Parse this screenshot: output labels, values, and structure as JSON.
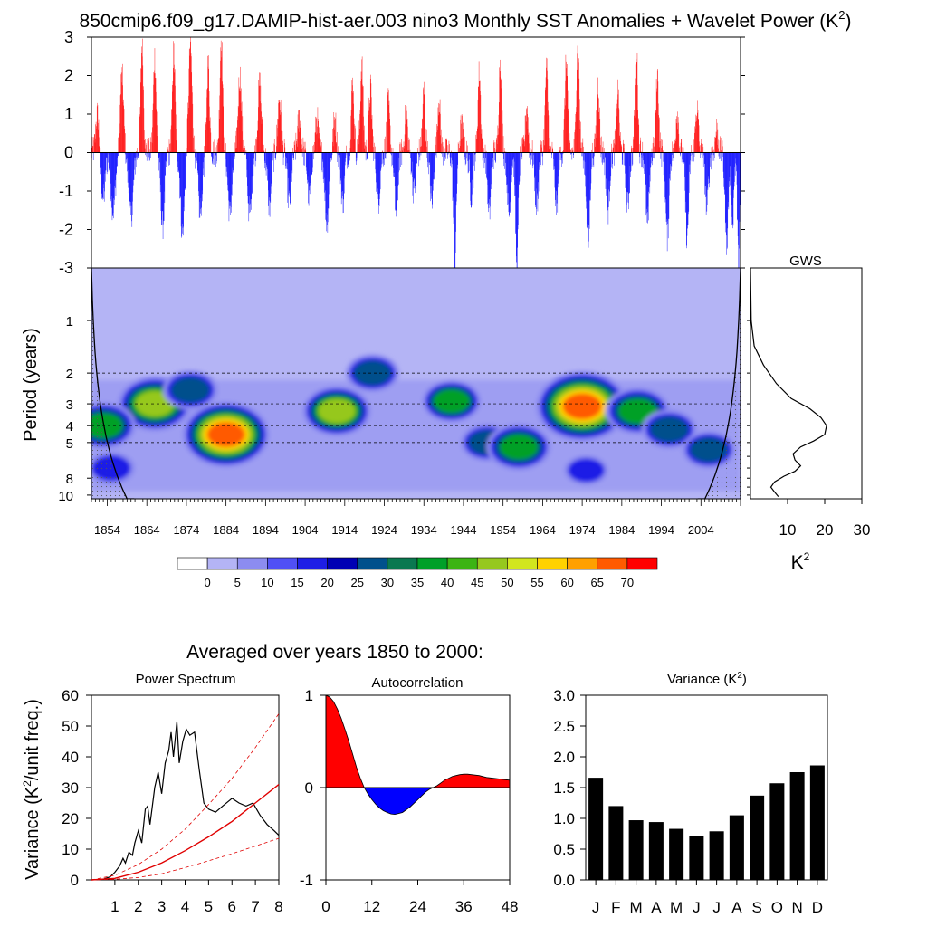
{
  "title": "850cmip6.f09_g17.DAMIP-hist-aer.003 nino3 Monthly SST Anomalies + Wavelet Power (K",
  "title_sup": "2",
  "title_tail": ")",
  "colors": {
    "warm": "#ff0000",
    "cool": "#0000ff",
    "black": "#000000",
    "base_fill": "#b4b4f5"
  },
  "anomaly_panel": {
    "type": "bar",
    "ylim": [
      -3,
      3
    ],
    "yticks": [
      "3",
      "2",
      "1",
      "0",
      "-1",
      "-2",
      "-3"
    ],
    "start_year": 1850,
    "end_year": 2014,
    "note_peaks": [
      {
        "x": 1882.8,
        "y": 3.0
      },
      {
        "x": 1941.8,
        "y": -3.0
      },
      {
        "x": 1957.5,
        "y": -3.0
      },
      {
        "x": 1972.9,
        "y": 3.0
      },
      {
        "x": 2013.5,
        "y": -2.9
      }
    ]
  },
  "wavelet_panel": {
    "type": "heatmap",
    "ylabel": "Period (years)",
    "ytick_labels": [
      "1",
      "2",
      "3",
      "4",
      "5",
      "8",
      "10"
    ],
    "ytick_values": [
      1,
      2,
      3,
      4,
      5,
      8,
      10
    ],
    "ylim": [
      0.5,
      10.5
    ],
    "xtick_labels": [
      "1854",
      "1864",
      "1874",
      "1884",
      "1894",
      "1904",
      "1914",
      "1924",
      "1934",
      "1944",
      "1954",
      "1964",
      "1974",
      "1984",
      "1994",
      "2004"
    ],
    "xlim": [
      1850,
      2014
    ],
    "hotspots": [
      {
        "x": 1866,
        "p": 3.0,
        "v": 52
      },
      {
        "x": 1884,
        "p": 4.5,
        "v": 66
      },
      {
        "x": 1853,
        "p": 4.0,
        "v": 42
      },
      {
        "x": 1875,
        "p": 2.5,
        "v": 32
      },
      {
        "x": 1912,
        "p": 3.3,
        "v": 46
      },
      {
        "x": 1921,
        "p": 2.0,
        "v": 30
      },
      {
        "x": 1941,
        "p": 2.9,
        "v": 36
      },
      {
        "x": 1950,
        "p": 5.0,
        "v": 30
      },
      {
        "x": 1958,
        "p": 5.3,
        "v": 42
      },
      {
        "x": 1974,
        "p": 3.1,
        "v": 72
      },
      {
        "x": 1988,
        "p": 3.3,
        "v": 42
      },
      {
        "x": 1996,
        "p": 4.2,
        "v": 32
      },
      {
        "x": 2006,
        "p": 5.5,
        "v": 30
      },
      {
        "x": 1855,
        "p": 7.0,
        "v": 24
      },
      {
        "x": 1975,
        "p": 7.2,
        "v": 20
      }
    ]
  },
  "colorbar": {
    "labels": [
      "0",
      "5",
      "10",
      "15",
      "20",
      "25",
      "30",
      "35",
      "40",
      "45",
      "50",
      "55",
      "60",
      "65",
      "70"
    ],
    "colors": [
      "#ffffff",
      "#b4b4f5",
      "#8c8cf0",
      "#5050f5",
      "#1e1ee6",
      "#0000b4",
      "#00508c",
      "#0a7850",
      "#00a028",
      "#3cb414",
      "#96c81e",
      "#d2e61e",
      "#ffd200",
      "#ffa000",
      "#ff5a00",
      "#ff0000"
    ]
  },
  "gws_panel": {
    "type": "line",
    "title": "GWS",
    "xlabel": "K",
    "xlabel_sup": "2",
    "xtick_labels": [
      "10",
      "20",
      "30"
    ],
    "xtick_values": [
      10,
      20,
      30
    ],
    "xlim": [
      0,
      30
    ],
    "ylim": [
      0.5,
      10.5
    ],
    "points": [
      [
        0.0,
        0.5
      ],
      [
        0.2,
        1.0
      ],
      [
        1.0,
        1.4
      ],
      [
        3.5,
        1.8
      ],
      [
        7.0,
        2.3
      ],
      [
        11.0,
        2.8
      ],
      [
        16.0,
        3.2
      ],
      [
        19.0,
        3.6
      ],
      [
        20.5,
        4.0
      ],
      [
        20.0,
        4.5
      ],
      [
        17.0,
        4.9
      ],
      [
        13.5,
        5.3
      ],
      [
        11.5,
        5.8
      ],
      [
        12.0,
        6.3
      ],
      [
        13.5,
        6.8
      ],
      [
        12.0,
        7.3
      ],
      [
        9.0,
        7.8
      ],
      [
        6.5,
        8.4
      ],
      [
        5.5,
        9.0
      ],
      [
        6.5,
        9.6
      ],
      [
        7.5,
        10.2
      ]
    ]
  },
  "bottom_title": "Averaged over years 1850 to 2000:",
  "power_spectrum": {
    "type": "line",
    "title": "Power Spectrum",
    "ylabel_pre": "Variance (K",
    "ylabel_sup": "2",
    "ylabel_post": "/unit freq.)",
    "xlim": [
      0,
      8
    ],
    "ylim": [
      0,
      60
    ],
    "xtick_labels": [
      "1",
      "2",
      "3",
      "4",
      "5",
      "6",
      "7",
      "8"
    ],
    "xtick_values": [
      1,
      2,
      3,
      4,
      5,
      6,
      7,
      8
    ],
    "ytick_labels": [
      "0",
      "10",
      "20",
      "30",
      "40",
      "50",
      "60"
    ],
    "ytick_values": [
      0,
      10,
      20,
      30,
      40,
      50,
      60
    ],
    "series": [
      {
        "values": [
          [
            0,
            0
          ],
          [
            0.5,
            0.2
          ],
          [
            0.8,
            1.0
          ],
          [
            1.0,
            2.5
          ],
          [
            1.2,
            4.5
          ],
          [
            1.35,
            7.0
          ],
          [
            1.45,
            5.5
          ],
          [
            1.6,
            9.0
          ],
          [
            1.75,
            8.0
          ],
          [
            1.85,
            12
          ],
          [
            2.0,
            16
          ],
          [
            2.15,
            12
          ],
          [
            2.3,
            23
          ],
          [
            2.4,
            24
          ],
          [
            2.5,
            18
          ],
          [
            2.7,
            30
          ],
          [
            2.85,
            35
          ],
          [
            3.0,
            28
          ],
          [
            3.15,
            38
          ],
          [
            3.3,
            42
          ],
          [
            3.4,
            48
          ],
          [
            3.5,
            40
          ],
          [
            3.65,
            51.5
          ],
          [
            3.75,
            38
          ],
          [
            3.9,
            45
          ],
          [
            4.05,
            49
          ],
          [
            4.2,
            47
          ],
          [
            4.4,
            48
          ],
          [
            4.6,
            36
          ],
          [
            4.8,
            25
          ],
          [
            5.0,
            23
          ],
          [
            5.3,
            22
          ],
          [
            5.6,
            24
          ],
          [
            6.0,
            26.5
          ],
          [
            6.3,
            25
          ],
          [
            6.6,
            24
          ],
          [
            6.9,
            25
          ],
          [
            7.2,
            21
          ],
          [
            7.5,
            18
          ],
          [
            7.8,
            16
          ],
          [
            8.0,
            14.5
          ]
        ]
      },
      {
        "values": [
          [
            0,
            0
          ],
          [
            1,
            0.5
          ],
          [
            2,
            2.5
          ],
          [
            3,
            5.5
          ],
          [
            4,
            9.5
          ],
          [
            5,
            14
          ],
          [
            6,
            19
          ],
          [
            7,
            25
          ],
          [
            8,
            31
          ]
        ]
      },
      {
        "values": [
          [
            0,
            0
          ],
          [
            1,
            1.5
          ],
          [
            2,
            5
          ],
          [
            3,
            10
          ],
          [
            4,
            16.5
          ],
          [
            5,
            24.5
          ],
          [
            6,
            33
          ],
          [
            7,
            43
          ],
          [
            8,
            54
          ]
        ]
      },
      {
        "values": [
          [
            0,
            0
          ],
          [
            1,
            0.2
          ],
          [
            2,
            0.8
          ],
          [
            3,
            2
          ],
          [
            4,
            4
          ],
          [
            5,
            6.2
          ],
          [
            6,
            8.5
          ],
          [
            7,
            11
          ],
          [
            8,
            13.5
          ]
        ]
      }
    ]
  },
  "autocorrelation": {
    "type": "area",
    "title": "Autocorrelation",
    "xlim": [
      0,
      48
    ],
    "ylim": [
      -1,
      1
    ],
    "xtick_labels": [
      "0",
      "12",
      "24",
      "36",
      "48"
    ],
    "xtick_values": [
      0,
      12,
      24,
      36,
      48
    ],
    "ytick_labels": [
      "1",
      "0",
      "-1"
    ],
    "ytick_values": [
      1,
      0,
      -1
    ],
    "values": [
      [
        0,
        1.0
      ],
      [
        1,
        0.98
      ],
      [
        2,
        0.93
      ],
      [
        3,
        0.85
      ],
      [
        4,
        0.75
      ],
      [
        5,
        0.63
      ],
      [
        6,
        0.5
      ],
      [
        7,
        0.36
      ],
      [
        8,
        0.22
      ],
      [
        9,
        0.1
      ],
      [
        10,
        0.0
      ],
      [
        11,
        -0.07
      ],
      [
        12,
        -0.13
      ],
      [
        13,
        -0.18
      ],
      [
        14,
        -0.22
      ],
      [
        15,
        -0.25
      ],
      [
        16,
        -0.27
      ],
      [
        17,
        -0.285
      ],
      [
        18,
        -0.29
      ],
      [
        19,
        -0.28
      ],
      [
        20,
        -0.27
      ],
      [
        21,
        -0.24
      ],
      [
        22,
        -0.21
      ],
      [
        23,
        -0.17
      ],
      [
        24,
        -0.13
      ],
      [
        25,
        -0.09
      ],
      [
        26,
        -0.05
      ],
      [
        27,
        -0.02
      ],
      [
        28,
        0.0
      ],
      [
        29,
        0.02
      ],
      [
        30,
        0.05
      ],
      [
        31,
        0.08
      ],
      [
        32,
        0.1
      ],
      [
        33,
        0.12
      ],
      [
        34,
        0.13
      ],
      [
        35,
        0.14
      ],
      [
        36,
        0.145
      ],
      [
        37,
        0.145
      ],
      [
        38,
        0.14
      ],
      [
        39,
        0.135
      ],
      [
        40,
        0.13
      ],
      [
        41,
        0.12
      ],
      [
        42,
        0.11
      ],
      [
        43,
        0.105
      ],
      [
        44,
        0.1
      ],
      [
        45,
        0.095
      ],
      [
        46,
        0.09
      ],
      [
        47,
        0.085
      ],
      [
        48,
        0.08
      ]
    ]
  },
  "variance": {
    "type": "bar",
    "title_pre": "Variance (K",
    "title_sup": "2",
    "title_post": ")",
    "categories": [
      "J",
      "F",
      "M",
      "A",
      "M",
      "J",
      "J",
      "A",
      "S",
      "O",
      "N",
      "D"
    ],
    "values": [
      1.66,
      1.2,
      0.97,
      0.94,
      0.83,
      0.71,
      0.79,
      1.05,
      1.37,
      1.57,
      1.75,
      1.86
    ],
    "ylim": [
      0,
      3
    ],
    "ytick_labels": [
      "0.0",
      "0.5",
      "1.0",
      "1.5",
      "2.0",
      "2.5",
      "3.0"
    ],
    "ytick_values": [
      0,
      0.5,
      1,
      1.5,
      2,
      2.5,
      3
    ]
  }
}
